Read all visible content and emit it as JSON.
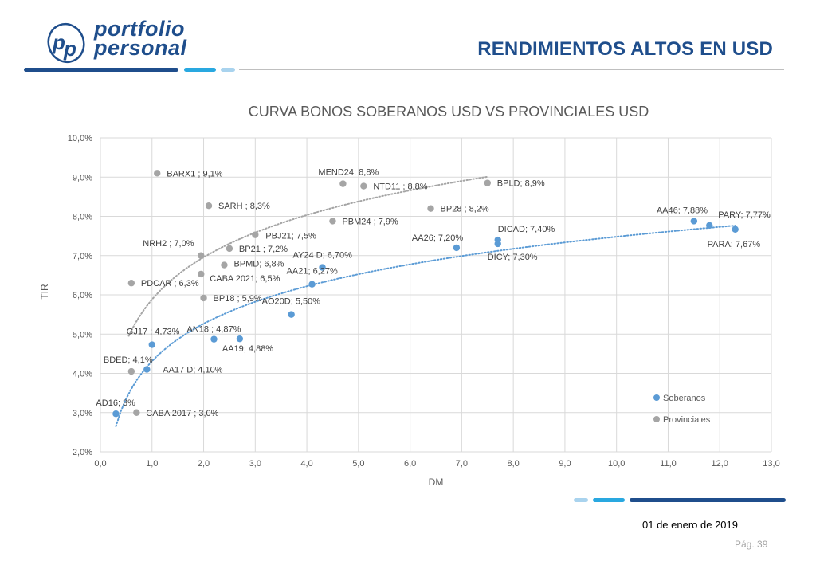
{
  "brand": {
    "line1": "portfolio",
    "line2": "personal"
  },
  "header": {
    "title": "RENDIMIENTOS ALTOS EN USD"
  },
  "footer": {
    "date": "01 de enero de 2019",
    "page": "Pág. 39"
  },
  "colors": {
    "brand": "#1f4e8c",
    "soberanos": "#5b9bd5",
    "provinciales": "#a5a5a5",
    "accent": "#29a8e0"
  },
  "chart_data": {
    "type": "scatter",
    "title": "CURVA  BONOS SOBERANOS USD VS PROVINCIALES USD",
    "xlabel": "DM",
    "ylabel": "TIR",
    "xlim": [
      0,
      13
    ],
    "ylim": [
      2,
      10
    ],
    "x_ticks": [
      "0,0",
      "1,0",
      "2,0",
      "3,0",
      "4,0",
      "5,0",
      "6,0",
      "7,0",
      "8,0",
      "9,0",
      "10,0",
      "11,0",
      "12,0",
      "13,0"
    ],
    "y_ticks": [
      "2,0%",
      "3,0%",
      "4,0%",
      "5,0%",
      "6,0%",
      "7,0%",
      "8,0%",
      "9,0%",
      "10,0%"
    ],
    "grid": true,
    "legend": "bottom-right",
    "trendline": "logarithmic, dotted, per series",
    "series": [
      {
        "name": "Soberanos",
        "points": [
          {
            "x": 0.3,
            "y": 2.97,
            "label": "AD16; 3%"
          },
          {
            "x": 0.9,
            "y": 4.1,
            "label": "AA17 D; 4,10%"
          },
          {
            "x": 1.0,
            "y": 4.73,
            "label": "GJ17 ; 4,73%"
          },
          {
            "x": 2.2,
            "y": 4.87,
            "label": "AN18 ; 4,87%"
          },
          {
            "x": 2.7,
            "y": 4.88,
            "label": "AA19; 4,88%"
          },
          {
            "x": 3.7,
            "y": 5.5,
            "label": "AO20D; 5,50%"
          },
          {
            "x": 4.1,
            "y": 6.27,
            "label": "AA21; 6,27%"
          },
          {
            "x": 4.3,
            "y": 6.7,
            "label": "AY24 D; 6,70%"
          },
          {
            "x": 6.9,
            "y": 7.2,
            "label": "AA26; 7,20%"
          },
          {
            "x": 7.7,
            "y": 7.4,
            "label": "DICAD; 7,40%"
          },
          {
            "x": 7.7,
            "y": 7.3,
            "label": "DICY; 7,30%"
          },
          {
            "x": 11.5,
            "y": 7.88,
            "label": "AA46; 7,88%"
          },
          {
            "x": 11.8,
            "y": 7.77,
            "label": "PARY; 7,77%"
          },
          {
            "x": 12.3,
            "y": 7.67,
            "label": "PARA; 7,67%"
          }
        ]
      },
      {
        "name": "Provinciales",
        "points": [
          {
            "x": 0.7,
            "y": 3.0,
            "label": "CABA 2017 ; 3,0%"
          },
          {
            "x": 0.6,
            "y": 4.05,
            "label": "BDED; 4,1%"
          },
          {
            "x": 0.6,
            "y": 6.3,
            "label": "PDCAR ; 6,3%"
          },
          {
            "x": 2.0,
            "y": 5.92,
            "label": "BP18 ; 5,9%"
          },
          {
            "x": 1.95,
            "y": 6.53,
            "label": "CABA 2021; 6,5%"
          },
          {
            "x": 2.4,
            "y": 6.76,
            "label": "BPMD; 6,8%"
          },
          {
            "x": 1.95,
            "y": 7.0,
            "label": "NRH2 ; 7,0%"
          },
          {
            "x": 2.5,
            "y": 7.18,
            "label": "BP21 ; 7,2%"
          },
          {
            "x": 3.0,
            "y": 7.53,
            "label": "PBJ21; 7,5%"
          },
          {
            "x": 1.1,
            "y": 9.1,
            "label": "BARX1 ; 9,1%"
          },
          {
            "x": 2.1,
            "y": 8.27,
            "label": "SARH ; 8,3%"
          },
          {
            "x": 4.5,
            "y": 7.88,
            "label": "PBM24 ; 7,9%"
          },
          {
            "x": 4.7,
            "y": 8.83,
            "label": "MEND24; 8,8%"
          },
          {
            "x": 5.1,
            "y": 8.77,
            "label": "NTD11 ; 8,8%"
          },
          {
            "x": 6.4,
            "y": 8.2,
            "label": "BP28 ; 8,2%"
          },
          {
            "x": 7.5,
            "y": 8.85,
            "label": "BPLD; 8,9%"
          }
        ]
      }
    ]
  }
}
